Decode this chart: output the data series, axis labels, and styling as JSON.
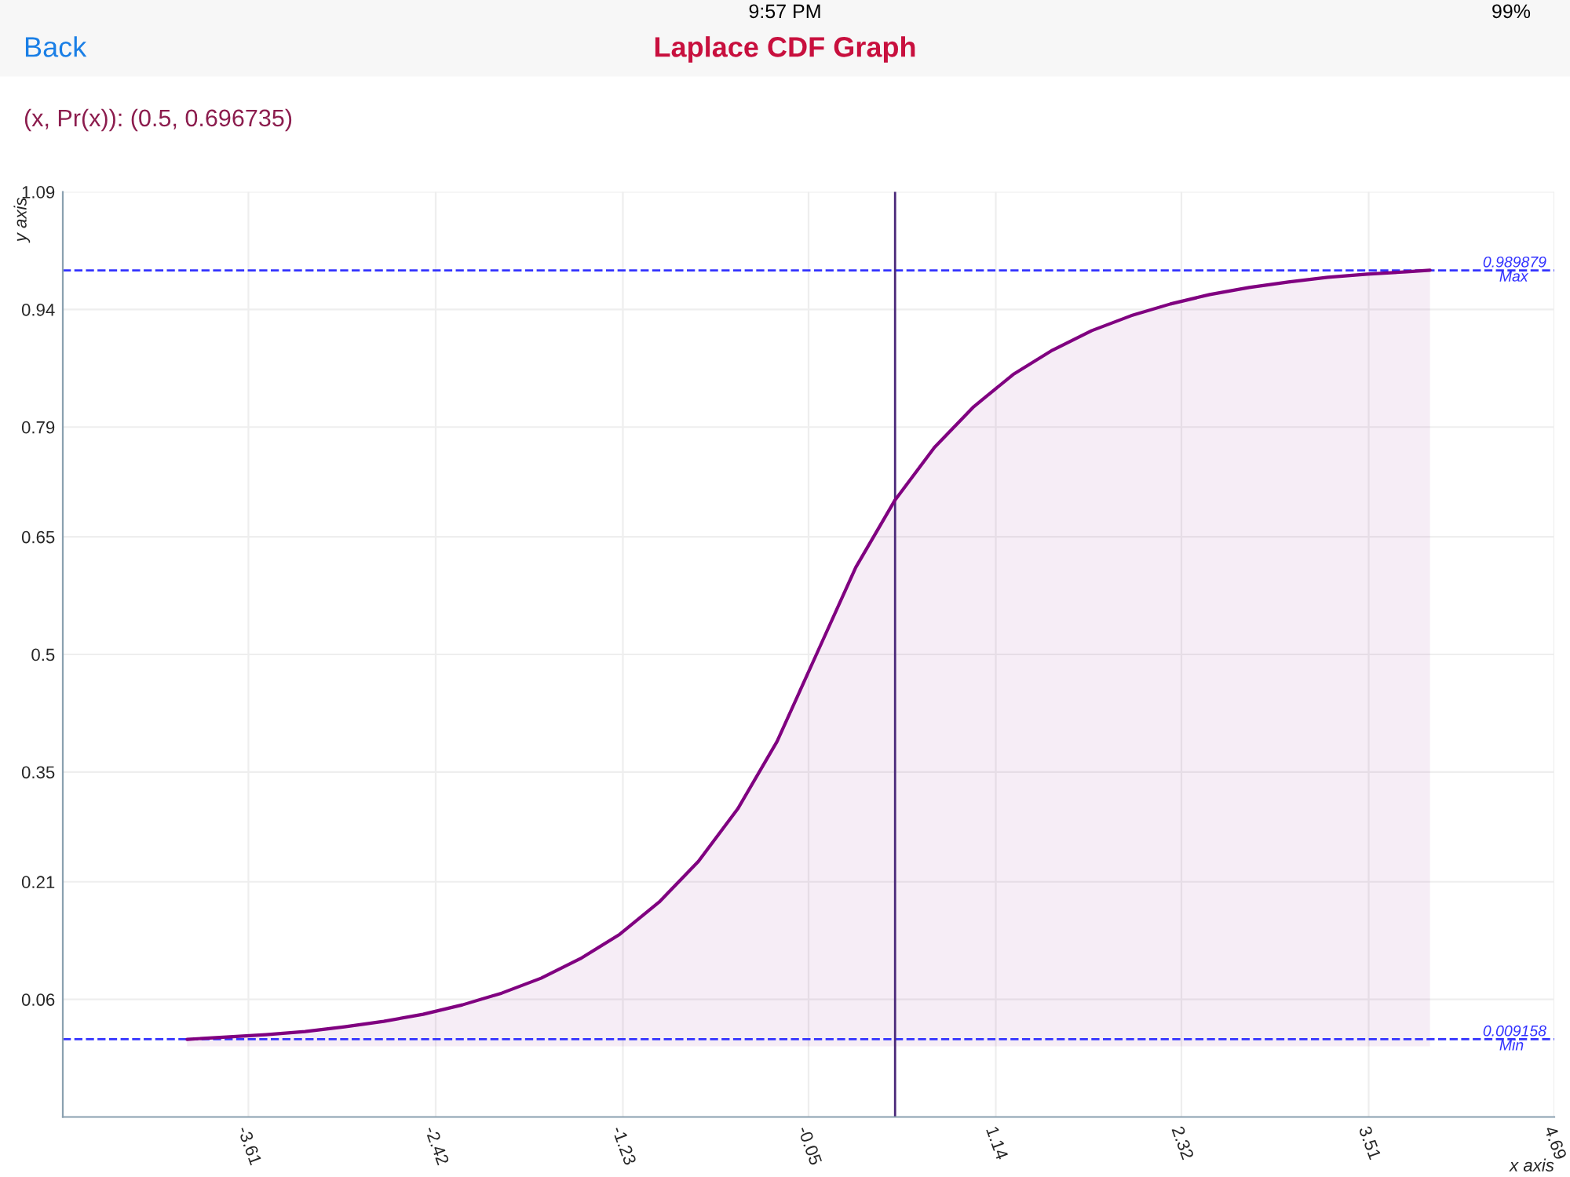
{
  "chart_data": {
    "type": "area",
    "title": "Laplace CDF Graph",
    "subtitle": "(x, Pr(x)): (0.5, 0.696735)",
    "xlabel": "x axis",
    "ylabel": "y axis",
    "x": [
      -4,
      -3.75,
      -3.5,
      -3.25,
      -3,
      -2.75,
      -2.5,
      -2.25,
      -2,
      -1.75,
      -1.5,
      -1.25,
      -1,
      -0.75,
      -0.5,
      -0.25,
      0,
      0.25,
      0.5,
      0.75,
      1,
      1.25,
      1.5,
      1.75,
      2,
      2.25,
      2.5,
      2.75,
      3,
      3.25,
      3.5,
      3.75,
      3.9
    ],
    "series": [
      {
        "color": "#800080",
        "values": [
          0.009,
          0.012,
          0.015,
          0.019,
          0.025,
          0.032,
          0.041,
          0.053,
          0.068,
          0.087,
          0.112,
          0.143,
          0.184,
          0.236,
          0.303,
          0.389,
          0.5,
          0.611,
          0.697,
          0.764,
          0.816,
          0.857,
          0.888,
          0.913,
          0.932,
          0.947,
          0.959,
          0.968,
          0.975,
          0.981,
          0.985,
          0.988,
          0.99
        ]
      }
    ],
    "xlim": [
      -4.79,
      4.69
    ],
    "xticks": [
      -3.61,
      -2.42,
      -1.23,
      -0.05,
      1.14,
      2.32,
      3.51,
      4.69
    ],
    "ylim": [
      -0.09,
      1.09
    ],
    "yticks": [
      0.06,
      0.21,
      0.35,
      0.5,
      0.65,
      0.79,
      0.94,
      1.09
    ],
    "ref_lines": [
      {
        "axis": "y",
        "value": 0.989879,
        "label": "Max",
        "color": "#3333ff",
        "line_style": "dashed"
      },
      {
        "axis": "y",
        "value": 0.009158,
        "label": "Min",
        "color": "#3333ff",
        "line_style": "dashed"
      },
      {
        "axis": "x",
        "value": 0.5,
        "color": "#4b2a7a",
        "line_style": "solid"
      }
    ],
    "annotations": [
      {
        "text": "0.989879",
        "x": 4.69,
        "y": 0.989879
      },
      {
        "text": "0.009158",
        "x": 4.69,
        "y": 0.009158
      },
      "Back",
      "9:57 PM",
      "99%"
    ],
    "grid": true
  }
}
